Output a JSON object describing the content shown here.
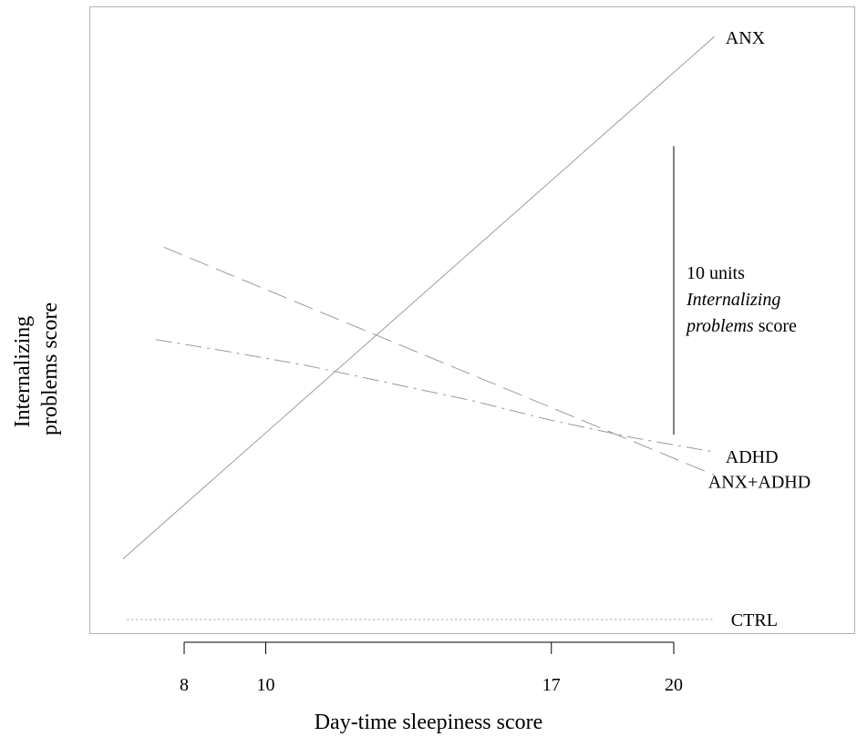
{
  "chart_data": {
    "type": "line",
    "xlabel": "Day-time sleepiness score",
    "ylabel_lines": [
      "Internalizing",
      "problems score"
    ],
    "x_ticks": [
      8,
      10,
      17,
      20
    ],
    "xlim": [
      6.5,
      21
    ],
    "ylim": [
      -0.35,
      20.5
    ],
    "series": [
      {
        "name": "ANX",
        "style": "solid",
        "color": "#9a9a9a",
        "x": [
          6.5,
          21
        ],
        "y": [
          2.1,
          20.2
        ]
      },
      {
        "name": "ANX+ADHD",
        "style": "dashed",
        "color": "#9a9a9a",
        "x": [
          7.5,
          21
        ],
        "y": [
          12.9,
          5.0
        ]
      },
      {
        "name": "ADHD",
        "style": "dashdot",
        "color": "#9a9a9a",
        "x": [
          7.3,
          9,
          11,
          13,
          15,
          17,
          19,
          21
        ],
        "y": [
          9.7,
          9.3,
          8.8,
          8.2,
          7.6,
          6.9,
          6.3,
          5.8
        ]
      },
      {
        "name": "CTRL",
        "style": "dotted",
        "color": "#9a9a9a",
        "x": [
          6.6,
          21
        ],
        "y": [
          0.0,
          0.0
        ]
      }
    ],
    "scale_bar": {
      "value": 10,
      "x": 20,
      "y_from": 6.4,
      "y_to": 16.4,
      "label_line1": "10 units",
      "label_line2": "Internalizing",
      "label_line3_italic": "problems",
      "label_line3_rest": " score"
    }
  }
}
